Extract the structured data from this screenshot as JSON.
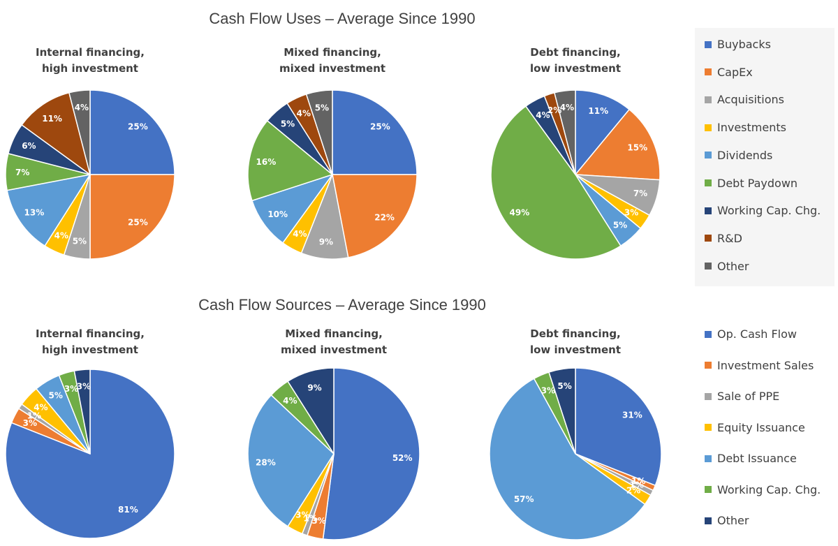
{
  "sections": {
    "uses_title": "Cash Flow Uses – Average Since 1990",
    "sources_title": "Cash Flow Sources – Average Since 1990"
  },
  "chart_data": [
    {
      "type": "pie",
      "group": "uses",
      "title_line1": "Internal financing,",
      "title_line2": "high investment",
      "slices": [
        {
          "name": "Buybacks",
          "value": 25,
          "label": "25%"
        },
        {
          "name": "CapEx",
          "value": 25,
          "label": "25%"
        },
        {
          "name": "Acquisitions",
          "value": 5,
          "label": "5%"
        },
        {
          "name": "Investments",
          "value": 4,
          "label": "4%"
        },
        {
          "name": "Dividends",
          "value": 13,
          "label": "13%"
        },
        {
          "name": "Debt Paydown",
          "value": 7,
          "label": "7%"
        },
        {
          "name": "Working Cap. Chg.",
          "value": 6,
          "label": "6%"
        },
        {
          "name": "R&D",
          "value": 11,
          "label": "11%"
        },
        {
          "name": "Other",
          "value": 4,
          "label": "4%"
        }
      ]
    },
    {
      "type": "pie",
      "group": "uses",
      "title_line1": "Mixed financing,",
      "title_line2": "mixed investment",
      "slices": [
        {
          "name": "Buybacks",
          "value": 25,
          "label": "25%"
        },
        {
          "name": "CapEx",
          "value": 22,
          "label": "22%"
        },
        {
          "name": "Acquisitions",
          "value": 9,
          "label": "9%"
        },
        {
          "name": "Investments",
          "value": 4,
          "label": "4%"
        },
        {
          "name": "Dividends",
          "value": 10,
          "label": "10%"
        },
        {
          "name": "Debt Paydown",
          "value": 16,
          "label": "16%"
        },
        {
          "name": "Working Cap. Chg.",
          "value": 5,
          "label": "5%"
        },
        {
          "name": "R&D",
          "value": 4,
          "label": "4%"
        },
        {
          "name": "Other",
          "value": 5,
          "label": "5%"
        }
      ]
    },
    {
      "type": "pie",
      "group": "uses",
      "title_line1": "Debt financing,",
      "title_line2": "low investment",
      "slices": [
        {
          "name": "Buybacks",
          "value": 11,
          "label": "11%"
        },
        {
          "name": "CapEx",
          "value": 15,
          "label": "15%"
        },
        {
          "name": "Acquisitions",
          "value": 7,
          "label": "7%"
        },
        {
          "name": "Investments",
          "value": 3,
          "label": "3%"
        },
        {
          "name": "Dividends",
          "value": 5,
          "label": "5%"
        },
        {
          "name": "Debt Paydown",
          "value": 49,
          "label": "49%"
        },
        {
          "name": "Working Cap. Chg.",
          "value": 4,
          "label": "4%"
        },
        {
          "name": "R&D",
          "value": 2,
          "label": "2%"
        },
        {
          "name": "Other",
          "value": 4,
          "label": "4%"
        }
      ]
    },
    {
      "type": "pie",
      "group": "sources",
      "title_line1": "Internal financing,",
      "title_line2": "high investment",
      "slices": [
        {
          "name": "Op. Cash Flow",
          "value": 81,
          "label": "81%"
        },
        {
          "name": "Investment Sales",
          "value": 3,
          "label": "3%"
        },
        {
          "name": "Sale of PPE",
          "value": 1,
          "label": "1%"
        },
        {
          "name": "Equity Issuance",
          "value": 4,
          "label": "4%"
        },
        {
          "name": "Debt Issuance",
          "value": 5,
          "label": "5%"
        },
        {
          "name": "Working Cap. Chg.",
          "value": 3,
          "label": "3%"
        },
        {
          "name": "Other",
          "value": 3,
          "label": "3%"
        }
      ]
    },
    {
      "type": "pie",
      "group": "sources",
      "title_line1": "Mixed financing,",
      "title_line2": "mixed investment",
      "slices": [
        {
          "name": "Op. Cash Flow",
          "value": 52,
          "label": "52%"
        },
        {
          "name": "Investment Sales",
          "value": 3,
          "label": "3%"
        },
        {
          "name": "Sale of PPE",
          "value": 1,
          "label": "1%"
        },
        {
          "name": "Equity Issuance",
          "value": 3,
          "label": "3%"
        },
        {
          "name": "Debt Issuance",
          "value": 28,
          "label": "28%"
        },
        {
          "name": "Working Cap. Chg.",
          "value": 4,
          "label": "4%"
        },
        {
          "name": "Other",
          "value": 9,
          "label": "9%"
        }
      ]
    },
    {
      "type": "pie",
      "group": "sources",
      "title_line1": "Debt financing,",
      "title_line2": "low investment",
      "slices": [
        {
          "name": "Op. Cash Flow",
          "value": 31,
          "label": "31%"
        },
        {
          "name": "Investment Sales",
          "value": 1,
          "label": "1%"
        },
        {
          "name": "Sale of PPE",
          "value": 1,
          "label": "1%"
        },
        {
          "name": "Equity Issuance",
          "value": 2,
          "label": "2%"
        },
        {
          "name": "Debt Issuance",
          "value": 57,
          "label": "57%"
        },
        {
          "name": "Working Cap. Chg.",
          "value": 3,
          "label": "3%"
        },
        {
          "name": "Other",
          "value": 5,
          "label": "5%"
        }
      ]
    }
  ],
  "legends": {
    "uses": [
      {
        "label": "Buybacks",
        "color": "#4472c4"
      },
      {
        "label": "CapEx",
        "color": "#ed7d31"
      },
      {
        "label": "Acquisitions",
        "color": "#a5a5a5"
      },
      {
        "label": "Investments",
        "color": "#ffc000"
      },
      {
        "label": "Dividends",
        "color": "#5b9bd5"
      },
      {
        "label": "Debt Paydown",
        "color": "#70ad47"
      },
      {
        "label": "Working Cap. Chg.",
        "color": "#264478"
      },
      {
        "label": "R&D",
        "color": "#9e480e"
      },
      {
        "label": "Other",
        "color": "#636363"
      }
    ],
    "sources": [
      {
        "label": "Op. Cash Flow",
        "color": "#4472c4"
      },
      {
        "label": "Investment Sales",
        "color": "#ed7d31"
      },
      {
        "label": "Sale of PPE",
        "color": "#a5a5a5"
      },
      {
        "label": "Equity Issuance",
        "color": "#ffc000"
      },
      {
        "label": "Debt Issuance",
        "color": "#5b9bd5"
      },
      {
        "label": "Working Cap. Chg.",
        "color": "#70ad47"
      },
      {
        "label": "Other",
        "color": "#264478"
      }
    ]
  }
}
